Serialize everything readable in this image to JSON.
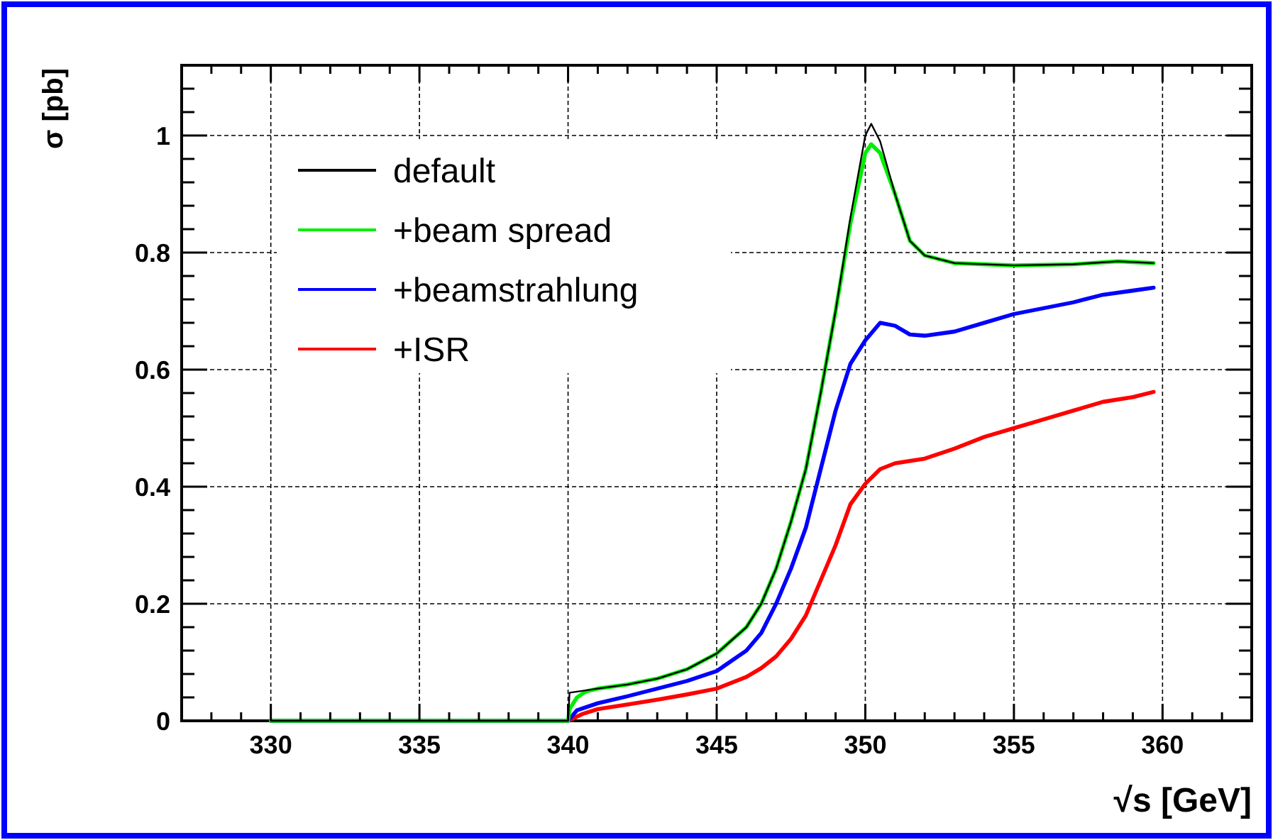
{
  "chart_data": {
    "type": "line",
    "xlabel": "√s [GeV]",
    "ylabel": "σ [pb]",
    "xlim": [
      327,
      363
    ],
    "ylim": [
      0,
      1.12
    ],
    "xticks": [
      {
        "value": 327,
        "label": null
      },
      {
        "value": 328,
        "label": null
      },
      {
        "value": 329,
        "label": null
      },
      330,
      {
        "value": 331,
        "label": null
      },
      {
        "value": 332,
        "label": null
      },
      {
        "value": 333,
        "label": null
      },
      {
        "value": 334,
        "label": null
      },
      335,
      {
        "value": 336,
        "label": null
      },
      {
        "value": 337,
        "label": null
      },
      {
        "value": 338,
        "label": null
      },
      {
        "value": 339,
        "label": null
      },
      340,
      {
        "value": 341,
        "label": null
      },
      {
        "value": 342,
        "label": null
      },
      {
        "value": 343,
        "label": null
      },
      {
        "value": 344,
        "label": null
      },
      345,
      {
        "value": 346,
        "label": null
      },
      {
        "value": 347,
        "label": null
      },
      {
        "value": 348,
        "label": null
      },
      {
        "value": 349,
        "label": null
      },
      350,
      {
        "value": 351,
        "label": null
      },
      {
        "value": 352,
        "label": null
      },
      {
        "value": 353,
        "label": null
      },
      {
        "value": 354,
        "label": null
      },
      355,
      {
        "value": 356,
        "label": null
      },
      {
        "value": 357,
        "label": null
      },
      {
        "value": 358,
        "label": null
      },
      {
        "value": 359,
        "label": null
      },
      360,
      {
        "value": 361,
        "label": null
      },
      {
        "value": 362,
        "label": null
      }
    ],
    "yticks": [
      0,
      {
        "value": 0.04,
        "label": null
      },
      {
        "value": 0.08,
        "label": null
      },
      {
        "value": 0.12,
        "label": null
      },
      {
        "value": 0.16,
        "label": null
      },
      0.2,
      {
        "value": 0.24,
        "label": null
      },
      {
        "value": 0.28,
        "label": null
      },
      {
        "value": 0.32,
        "label": null
      },
      {
        "value": 0.36,
        "label": null
      },
      0.4,
      {
        "value": 0.44,
        "label": null
      },
      {
        "value": 0.48,
        "label": null
      },
      {
        "value": 0.52,
        "label": null
      },
      {
        "value": 0.56,
        "label": null
      },
      0.6,
      {
        "value": 0.64,
        "label": null
      },
      {
        "value": 0.68,
        "label": null
      },
      {
        "value": 0.72,
        "label": null
      },
      {
        "value": 0.76,
        "label": null
      },
      0.8,
      {
        "value": 0.84,
        "label": null
      },
      {
        "value": 0.88,
        "label": null
      },
      {
        "value": 0.92,
        "label": null
      },
      {
        "value": 0.96,
        "label": null
      },
      1,
      {
        "value": 1.04,
        "label": null
      },
      {
        "value": 1.08,
        "label": null
      }
    ],
    "grid": true,
    "legend": "top left",
    "line_style": "solid",
    "series": [
      {
        "name": "default",
        "color": "#000000",
        "x": [
          330,
          340,
          340.05,
          341,
          342,
          343,
          344,
          345,
          346,
          346.5,
          347,
          347.5,
          348,
          348.5,
          349,
          349.5,
          350,
          350.2,
          350.5,
          351,
          351.5,
          352,
          353,
          355,
          357,
          358.5,
          359.7
        ],
        "values": [
          0,
          0,
          0.048,
          0.055,
          0.062,
          0.072,
          0.088,
          0.115,
          0.16,
          0.2,
          0.26,
          0.34,
          0.43,
          0.56,
          0.7,
          0.86,
          1.0,
          1.02,
          0.99,
          0.9,
          0.82,
          0.795,
          0.782,
          0.778,
          0.78,
          0.785,
          0.782
        ]
      },
      {
        "name": "+beam spread",
        "color": "#00ee00",
        "x": [
          330,
          340,
          340.05,
          340.3,
          340.6,
          341,
          342,
          343,
          344,
          345,
          346,
          346.5,
          347,
          347.5,
          348,
          348.5,
          349,
          349.5,
          350,
          350.2,
          350.5,
          351,
          351.5,
          352,
          353,
          355,
          357,
          358.5,
          359.7
        ],
        "values": [
          0,
          0,
          0.02,
          0.04,
          0.05,
          0.055,
          0.062,
          0.072,
          0.088,
          0.115,
          0.16,
          0.2,
          0.26,
          0.34,
          0.43,
          0.56,
          0.7,
          0.85,
          0.97,
          0.985,
          0.97,
          0.9,
          0.82,
          0.795,
          0.782,
          0.778,
          0.78,
          0.785,
          0.782
        ]
      },
      {
        "name": "+beamstrahlung",
        "color": "#0000ff",
        "x": [
          330,
          340,
          340.3,
          341,
          342,
          343,
          344,
          345,
          346,
          346.5,
          347,
          347.5,
          348,
          348.5,
          349,
          349.5,
          350,
          350.5,
          351,
          351.5,
          352,
          353,
          354,
          355,
          356,
          357,
          358,
          359,
          359.7
        ],
        "values": [
          0,
          0,
          0.018,
          0.03,
          0.042,
          0.055,
          0.068,
          0.085,
          0.12,
          0.15,
          0.2,
          0.26,
          0.33,
          0.43,
          0.53,
          0.61,
          0.65,
          0.68,
          0.675,
          0.66,
          0.658,
          0.665,
          0.68,
          0.695,
          0.705,
          0.715,
          0.728,
          0.735,
          0.74
        ]
      },
      {
        "name": "+ISR",
        "color": "#ff0000",
        "x": [
          330,
          340,
          340.5,
          341,
          342,
          343,
          344,
          345,
          346,
          346.5,
          347,
          347.5,
          348,
          348.5,
          349,
          349.5,
          350,
          350.5,
          351,
          352,
          353,
          354,
          355,
          356,
          357,
          358,
          359,
          359.7
        ],
        "values": [
          0,
          0,
          0.012,
          0.02,
          0.028,
          0.036,
          0.045,
          0.055,
          0.075,
          0.09,
          0.11,
          0.14,
          0.18,
          0.24,
          0.3,
          0.37,
          0.405,
          0.43,
          0.44,
          0.448,
          0.465,
          0.485,
          0.5,
          0.515,
          0.53,
          0.545,
          0.553,
          0.562
        ]
      }
    ]
  }
}
